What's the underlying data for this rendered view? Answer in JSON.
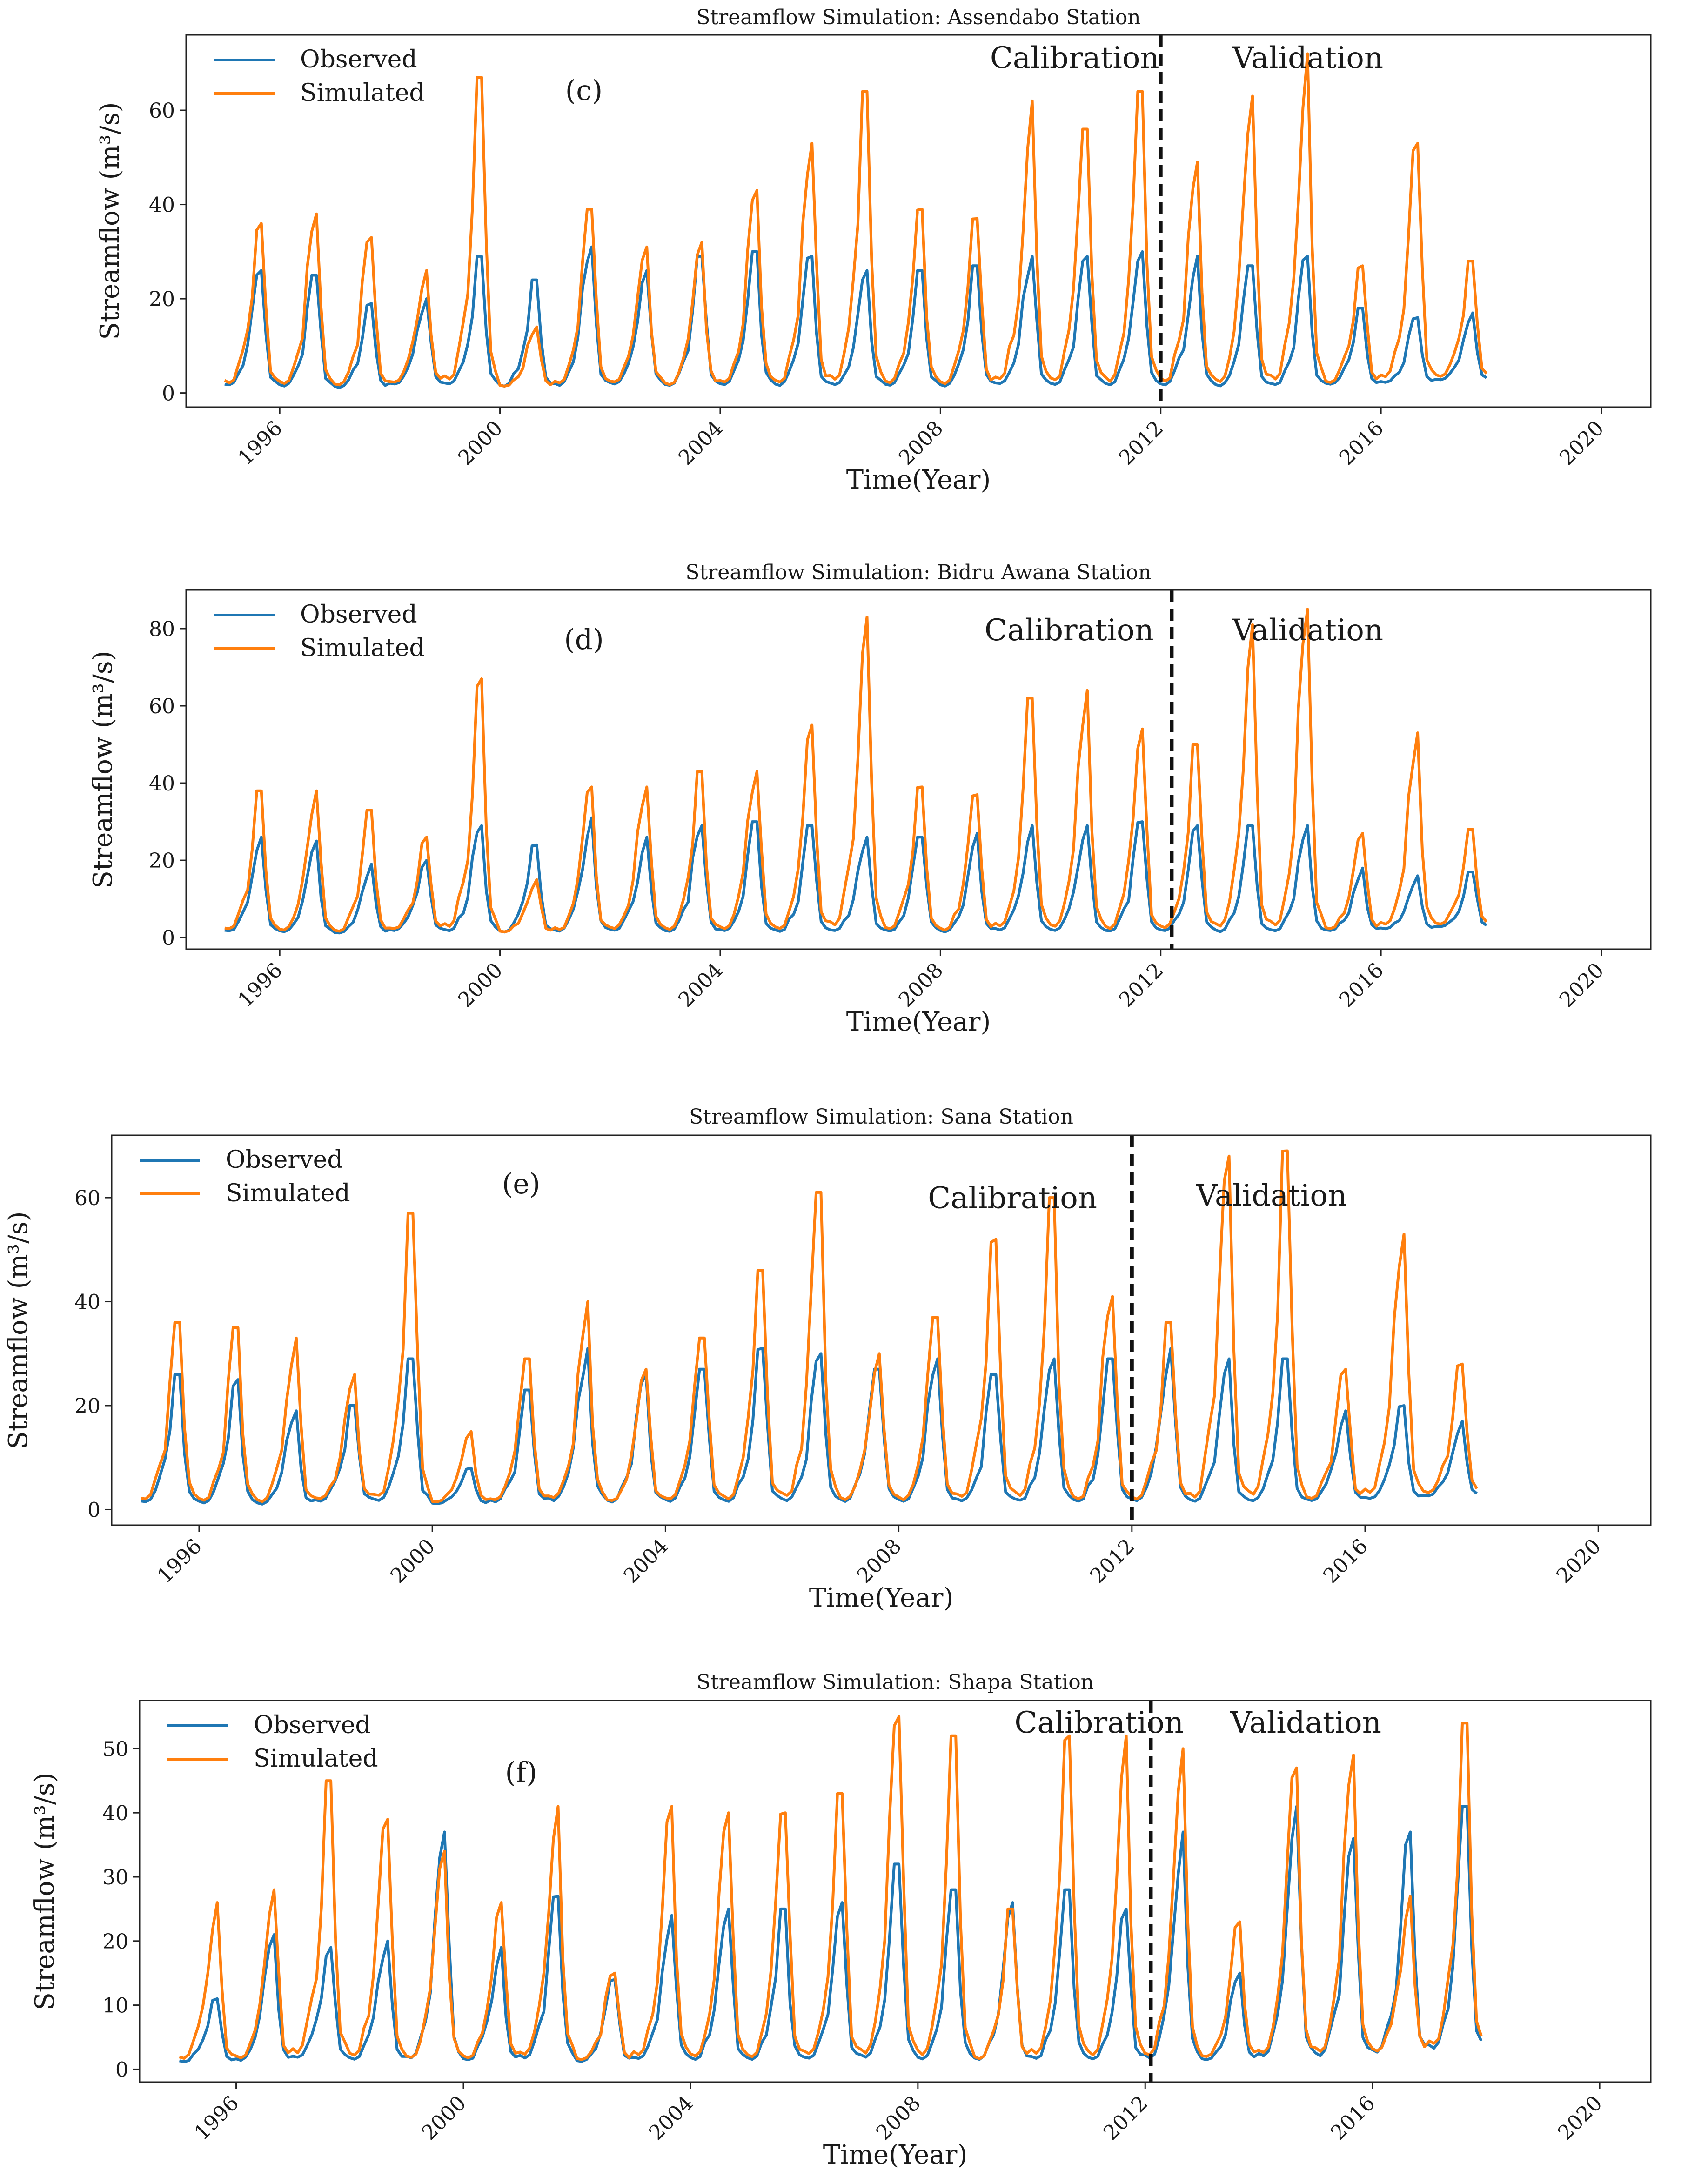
{
  "figure": {
    "panels": 4,
    "colors": {
      "observed": "#1f77b4",
      "simulated": "#ff7f0e",
      "split_line": "#111111"
    }
  },
  "chart_data": [
    {
      "type": "line",
      "panel_label": "(c)",
      "title": "Streamflow Simulation: Assendabo Station",
      "xlabel": "Time(Year)",
      "ylabel": "Streamflow (m³/s)",
      "xlim": [
        1994.3,
        2020.9
      ],
      "ylim": [
        -3,
        76
      ],
      "xticks": [
        1996,
        2000,
        2004,
        2008,
        2012,
        2016,
        2020
      ],
      "yticks": [
        0,
        20,
        40,
        60
      ],
      "legend": {
        "position": "upper-left",
        "entries": [
          "Observed",
          "Simulated"
        ]
      },
      "split_year": 2012.0,
      "annotations": [
        {
          "text": "Calibration",
          "x": 2008.9,
          "y": 69.0
        },
        {
          "text": "Validation",
          "x": 2013.3,
          "y": 69.0
        }
      ],
      "series": [
        {
          "name": "Observed",
          "peaks": [
            26,
            25,
            19,
            20,
            29,
            24,
            31,
            26,
            29,
            30,
            29,
            26,
            26,
            27,
            29,
            29,
            30,
            29,
            27,
            29,
            18,
            16,
            17
          ],
          "base": [
            1.2,
            1.0,
            0.8,
            1.5,
            1.3,
            1.0,
            1.1,
            1.4,
            1.0,
            1.2,
            1.1,
            1.3,
            1.2,
            1.0,
            1.4,
            1.3,
            1.1,
            1.2,
            1.0,
            1.2,
            1.5,
            2.0,
            2.5
          ]
        },
        {
          "name": "Simulated",
          "peaks": [
            36,
            38,
            33,
            26,
            67,
            14,
            39,
            31,
            32,
            43,
            53,
            64,
            39,
            37,
            62,
            56,
            64,
            49,
            63,
            72,
            27,
            53,
            28
          ],
          "base": [
            1.5,
            1.2,
            1.0,
            1.8,
            1.6,
            1.2,
            1.3,
            1.7,
            1.2,
            1.5,
            1.3,
            1.6,
            1.5,
            1.2,
            1.7,
            1.6,
            1.3,
            1.5,
            1.2,
            1.5,
            1.8,
            2.4,
            3.0
          ]
        }
      ]
    },
    {
      "type": "line",
      "panel_label": "(d)",
      "title": "Streamflow Simulation: Bidru Awana Station",
      "xlabel": "Time(Year)",
      "ylabel": "Streamflow (m³/s)",
      "xlim": [
        1994.3,
        2020.9
      ],
      "ylim": [
        -3,
        90
      ],
      "xticks": [
        1996,
        2000,
        2004,
        2008,
        2012,
        2016,
        2020
      ],
      "yticks": [
        0,
        20,
        40,
        60,
        80
      ],
      "legend": {
        "position": "upper-left",
        "entries": [
          "Observed",
          "Simulated"
        ]
      },
      "split_year": 2012.2,
      "annotations": [
        {
          "text": "Calibration",
          "x": 2008.8,
          "y": 77.0
        },
        {
          "text": "Validation",
          "x": 2013.3,
          "y": 77.0
        }
      ],
      "series": [
        {
          "name": "Observed",
          "peaks": [
            26,
            25,
            19,
            20,
            29,
            24,
            31,
            26,
            29,
            30,
            29,
            26,
            26,
            27,
            29,
            29,
            30,
            29,
            29,
            29,
            18,
            16,
            17
          ],
          "base": [
            1.2,
            1.0,
            0.8,
            1.5,
            1.3,
            1.0,
            1.1,
            1.4,
            1.0,
            1.2,
            1.1,
            1.3,
            1.2,
            1.0,
            1.4,
            1.3,
            1.1,
            1.2,
            1.0,
            1.2,
            1.5,
            2.0,
            2.5
          ]
        },
        {
          "name": "Simulated",
          "peaks": [
            38,
            38,
            33,
            26,
            67,
            15,
            39,
            39,
            43,
            43,
            55,
            83,
            39,
            37,
            62,
            64,
            54,
            50,
            81,
            85,
            27,
            53,
            28
          ],
          "base": [
            1.5,
            1.2,
            1.0,
            1.8,
            1.6,
            1.2,
            1.3,
            1.7,
            1.2,
            1.5,
            1.3,
            1.6,
            1.5,
            1.2,
            1.7,
            1.6,
            1.3,
            1.5,
            1.2,
            1.5,
            1.8,
            2.4,
            3.0
          ]
        }
      ]
    },
    {
      "type": "line",
      "panel_label": "(e)",
      "title": "Streamflow Simulation: Sana Station",
      "xlabel": "Time(Year)",
      "ylabel": "Streamflow (m³/s)",
      "xlim": [
        1994.5,
        2020.9
      ],
      "ylim": [
        -3,
        72
      ],
      "xticks": [
        1996,
        2000,
        2004,
        2008,
        2012,
        2016,
        2020
      ],
      "yticks": [
        0,
        20,
        40,
        60
      ],
      "legend": {
        "position": "upper-left",
        "entries": [
          "Observed",
          "Simulated"
        ]
      },
      "split_year": 2012.0,
      "annotations": [
        {
          "text": "Calibration",
          "x": 2008.5,
          "y": 58.0
        },
        {
          "text": "Validation",
          "x": 2013.1,
          "y": 58.5
        }
      ],
      "series": [
        {
          "name": "Observed",
          "peaks": [
            26,
            25,
            19,
            20,
            29,
            8,
            23,
            31,
            26,
            27,
            31,
            30,
            27,
            29,
            26,
            29,
            29,
            31,
            29,
            29,
            19,
            20,
            17
          ],
          "base": [
            1.0,
            0.8,
            0.7,
            1.3,
            1.2,
            1.0,
            1.1,
            1.2,
            1.0,
            1.1,
            1.0,
            1.2,
            1.1,
            1.0,
            1.2,
            1.2,
            1.0,
            1.1,
            1.0,
            1.1,
            1.4,
            1.8,
            2.3
          ]
        },
        {
          "name": "Simulated",
          "peaks": [
            36,
            35,
            33,
            26,
            57,
            15,
            29,
            40,
            27,
            33,
            46,
            61,
            30,
            37,
            52,
            60,
            41,
            36,
            68,
            69,
            27,
            53,
            28
          ],
          "base": [
            1.3,
            1.1,
            0.9,
            1.6,
            1.5,
            1.2,
            1.3,
            1.5,
            1.2,
            1.4,
            1.2,
            1.5,
            1.4,
            1.2,
            1.5,
            1.5,
            1.2,
            1.4,
            1.2,
            1.4,
            1.7,
            2.2,
            2.8
          ]
        }
      ]
    },
    {
      "type": "line",
      "panel_label": "(f)",
      "title": "Streamflow Simulation: Shapa Station",
      "xlabel": "Time(Year)",
      "ylabel": "Streamflow (m³/s)",
      "xlim": [
        1994.3,
        2020.9
      ],
      "ylim": [
        -2,
        57.5
      ],
      "xticks": [
        1996,
        2000,
        2004,
        2008,
        2012,
        2016,
        2020
      ],
      "yticks": [
        0,
        10,
        20,
        30,
        40,
        50
      ],
      "legend": {
        "position": "upper-left",
        "entries": [
          "Observed",
          "Simulated"
        ]
      },
      "split_year": 2012.1,
      "annotations": [
        {
          "text": "Calibration",
          "x": 2009.7,
          "y": 52.5
        },
        {
          "text": "Validation",
          "x": 2013.5,
          "y": 52.5
        }
      ],
      "series": [
        {
          "name": "Observed",
          "peaks": [
            11,
            21,
            19,
            20,
            37,
            19,
            27,
            14,
            24,
            25,
            25,
            26,
            32,
            28,
            26,
            28,
            25,
            37,
            15,
            41,
            36,
            37,
            41
          ],
          "base": [
            1.0,
            1.0,
            1.5,
            1.2,
            1.0,
            1.1,
            1.3,
            1.0,
            1.2,
            1.1,
            1.0,
            1.2,
            1.3,
            1.1,
            1.0,
            1.2,
            1.1,
            1.0,
            1.2,
            1.3,
            1.5,
            2.0,
            2.5
          ]
        },
        {
          "name": "Simulated",
          "peaks": [
            26,
            28,
            45,
            39,
            34,
            26,
            41,
            15,
            41,
            40,
            40,
            43,
            55,
            52,
            25,
            52,
            52,
            50,
            23,
            47,
            49,
            27,
            54
          ],
          "base": [
            1.2,
            1.2,
            1.8,
            1.5,
            1.2,
            1.3,
            1.6,
            1.2,
            1.5,
            1.3,
            1.2,
            1.5,
            1.6,
            1.3,
            1.2,
            1.5,
            1.3,
            1.2,
            1.5,
            1.6,
            1.8,
            2.4,
            3.0
          ]
        }
      ]
    }
  ]
}
